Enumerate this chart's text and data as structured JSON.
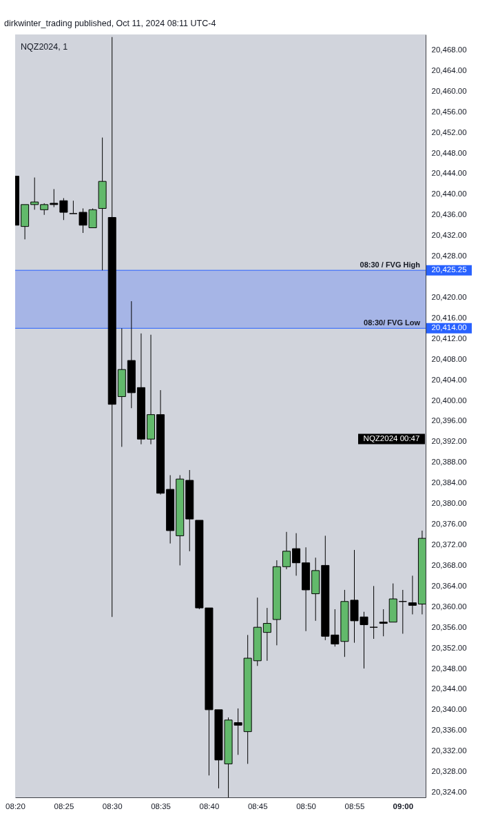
{
  "chart_data": {
    "type": "candlestick",
    "title": "NQZ2024, 1",
    "annotations": [
      "dirkwinter_trading published, Oct 11, 2024 08:11 UTC-4",
      {
        "text": "08:30 / FVG High",
        "y": 20425.25
      },
      {
        "text": "08:30/ FVG Low",
        "y": 20414.0
      },
      "NQZ2024 00:47"
    ],
    "x": [
      8.3333,
      8.35,
      8.3667,
      8.3833,
      8.4,
      8.4167,
      8.4333,
      8.45,
      8.4667,
      8.4833,
      8.5,
      8.5167,
      8.5333,
      8.55,
      8.5667,
      8.5833,
      8.6,
      8.6167,
      8.6333,
      8.65,
      8.6667,
      8.6833,
      8.7,
      8.7167,
      8.7333,
      8.75,
      8.7667,
      8.7833,
      8.8,
      8.8167,
      8.8333,
      8.85,
      8.8667,
      8.8833,
      8.9,
      8.9167,
      8.9333,
      8.95,
      8.9667,
      8.9833,
      9.0,
      9.0167,
      9.0333
    ],
    "ohlc": [
      [
        20443.5,
        20443.5,
        20434.0,
        20434.0
      ],
      [
        20433.75,
        20438.0,
        20431.25,
        20438.0
      ],
      [
        20438.0,
        20443.25,
        20437.0,
        20438.5
      ],
      [
        20437.0,
        20438.25,
        20436.0,
        20438.0
      ],
      [
        20438.25,
        20441.0,
        20437.5,
        20438.0
      ],
      [
        20438.75,
        20439.25,
        20435.0,
        20436.5
      ],
      [
        20436.25,
        20438.75,
        20436.25,
        20436.25
      ],
      [
        20436.5,
        20437.25,
        20432.5,
        20434.0
      ],
      [
        20433.5,
        20437.25,
        20433.5,
        20437.0
      ],
      [
        20437.25,
        20451.0,
        20425.25,
        20442.5
      ],
      [
        20435.5,
        20470.5,
        20358.0,
        20399.25
      ],
      [
        20400.75,
        20414.0,
        20391.0,
        20406.0
      ],
      [
        20407.75,
        20419.25,
        20398.5,
        20401.5
      ],
      [
        20402.5,
        20413.0,
        20391.5,
        20392.5
      ],
      [
        20392.5,
        20412.75,
        20391.5,
        20397.25
      ],
      [
        20397.25,
        20402.0,
        20381.75,
        20382.0
      ],
      [
        20382.75,
        20385.5,
        20372.25,
        20374.75
      ],
      [
        20373.75,
        20385.5,
        20368.0,
        20384.75
      ],
      [
        20384.5,
        20386.5,
        20370.75,
        20377.0
      ],
      [
        20376.75,
        20376.75,
        20359.5,
        20359.75
      ],
      [
        20359.75,
        20359.75,
        20327.25,
        20340.0
      ],
      [
        20340.0,
        20340.0,
        20324.75,
        20330.25
      ],
      [
        20329.5,
        20338.5,
        20323.0,
        20338.0
      ],
      [
        20337.5,
        20340.25,
        20331.25,
        20337.0
      ],
      [
        20335.75,
        20354.5,
        20329.5,
        20350.0
      ],
      [
        20349.5,
        20361.75,
        20348.5,
        20356.0
      ],
      [
        20355.0,
        20359.75,
        20349.5,
        20356.75
      ],
      [
        20357.5,
        20369.0,
        20352.5,
        20367.75
      ],
      [
        20367.75,
        20374.5,
        20367.25,
        20370.75
      ],
      [
        20371.25,
        20374.25,
        20366.0,
        20368.5
      ],
      [
        20368.5,
        20371.5,
        20355.25,
        20363.25
      ],
      [
        20362.5,
        20369.5,
        20357.25,
        20367.0
      ],
      [
        20368.0,
        20373.75,
        20353.5,
        20354.25
      ],
      [
        20354.5,
        20359.5,
        20352.25,
        20352.75
      ],
      [
        20353.25,
        20363.25,
        20350.25,
        20361.0
      ],
      [
        20361.25,
        20371.0,
        20353.0,
        20357.25
      ],
      [
        20358.0,
        20359.0,
        20348.0,
        20356.5
      ],
      [
        20356.0,
        20364.0,
        20353.75,
        20356.0
      ],
      [
        20357.0,
        20359.5,
        20354.25,
        20356.75
      ],
      [
        20357.0,
        20364.5,
        20357.0,
        20361.5
      ],
      [
        20361.0,
        20363.25,
        20354.75,
        20361.0
      ],
      [
        20360.75,
        20366.0,
        20358.5,
        20360.25
      ],
      [
        20360.5,
        20374.75,
        20358.5,
        20373.25
      ]
    ],
    "colors": [
      "#000000",
      "#62b96b",
      "#62b96b",
      "#62b96b",
      "#000000",
      "#000000",
      "#000000",
      "#000000",
      "#62b96b",
      "#62b96b",
      "#000000",
      "#62b96b",
      "#000000",
      "#000000",
      "#62b96b",
      "#000000",
      "#000000",
      "#62b96b",
      "#000000",
      "#000000",
      "#000000",
      "#000000",
      "#62b96b",
      "#000000",
      "#62b96b",
      "#62b96b",
      "#62b96b",
      "#62b96b",
      "#62b96b",
      "#000000",
      "#000000",
      "#62b96b",
      "#000000",
      "#000000",
      "#62b96b",
      "#000000",
      "#000000",
      "#000000",
      "#000000",
      "#62b96b",
      "#000000",
      "#000000",
      "#62b96b"
    ],
    "xlim": [
      8.3333,
      9.0393
    ],
    "ylim": [
      20323.0,
      20471.0
    ],
    "xticks": [
      {
        "value": 8.3333,
        "label": "08:20"
      },
      {
        "value": 8.4167,
        "label": "08:25"
      },
      {
        "value": 8.5,
        "label": "08:30"
      },
      {
        "value": 8.5833,
        "label": "08:35"
      },
      {
        "value": 8.6667,
        "label": "08:40"
      },
      {
        "value": 8.75,
        "label": "08:45"
      },
      {
        "value": 8.8333,
        "label": "08:50"
      },
      {
        "value": 8.9167,
        "label": "08:55"
      },
      {
        "value": 9.0,
        "label": "09:00"
      }
    ],
    "yticks": [
      {
        "value": 20324,
        "label": "20,324.00"
      },
      {
        "value": 20328,
        "label": "20,328.00"
      },
      {
        "value": 20332,
        "label": "20,332.00"
      },
      {
        "value": 20336,
        "label": "20,336.00"
      },
      {
        "value": 20340,
        "label": "20,340.00"
      },
      {
        "value": 20344,
        "label": "20,344.00"
      },
      {
        "value": 20348,
        "label": "20,348.00"
      },
      {
        "value": 20352,
        "label": "20,352.00"
      },
      {
        "value": 20356,
        "label": "20,356.00"
      },
      {
        "value": 20360,
        "label": "20,360.00"
      },
      {
        "value": 20364,
        "label": "20,364.00"
      },
      {
        "value": 20368,
        "label": "20,368.00"
      },
      {
        "value": 20372,
        "label": "20,372.00"
      },
      {
        "value": 20376,
        "label": "20,376.00"
      },
      {
        "value": 20380,
        "label": "20,380.00"
      },
      {
        "value": 20384,
        "label": "20,384.00"
      },
      {
        "value": 20388,
        "label": "20,388.00"
      },
      {
        "value": 20392,
        "label": "20,392.00"
      },
      {
        "value": 20396,
        "label": "20,396.00"
      },
      {
        "value": 20400,
        "label": "20,400.00"
      },
      {
        "value": 20404,
        "label": "20,404.00"
      },
      {
        "value": 20408,
        "label": "20,408.00"
      },
      {
        "value": 20412,
        "label": "20,412.00"
      },
      {
        "value": 20416,
        "label": "20,416.00"
      },
      {
        "value": 20420,
        "label": "20,420.00"
      },
      {
        "value": 20428,
        "label": "20,428.00"
      },
      {
        "value": 20432,
        "label": "20,432.00"
      },
      {
        "value": 20436,
        "label": "20,436.00"
      },
      {
        "value": 20440,
        "label": "20,440.00"
      },
      {
        "value": 20444,
        "label": "20,444.00"
      },
      {
        "value": 20448,
        "label": "20,448.00"
      },
      {
        "value": 20452,
        "label": "20,452.00"
      },
      {
        "value": 20456,
        "label": "20,456.00"
      },
      {
        "value": 20460,
        "label": "20,460.00"
      },
      {
        "value": 20464,
        "label": "20,464.00"
      },
      {
        "value": 20468,
        "label": "20,468.00"
      }
    ],
    "bands": [
      {
        "axis": "y",
        "from": 20414.0,
        "to": 20425.25,
        "color": "#a6b5e6"
      }
    ],
    "ref_lines": [
      {
        "axis": "y",
        "value": 20425.25,
        "label": "20,425.25",
        "color": "#2962ff"
      },
      {
        "axis": "y",
        "value": 20414.0,
        "label": "20,414.00",
        "color": "#2962ff"
      }
    ]
  }
}
